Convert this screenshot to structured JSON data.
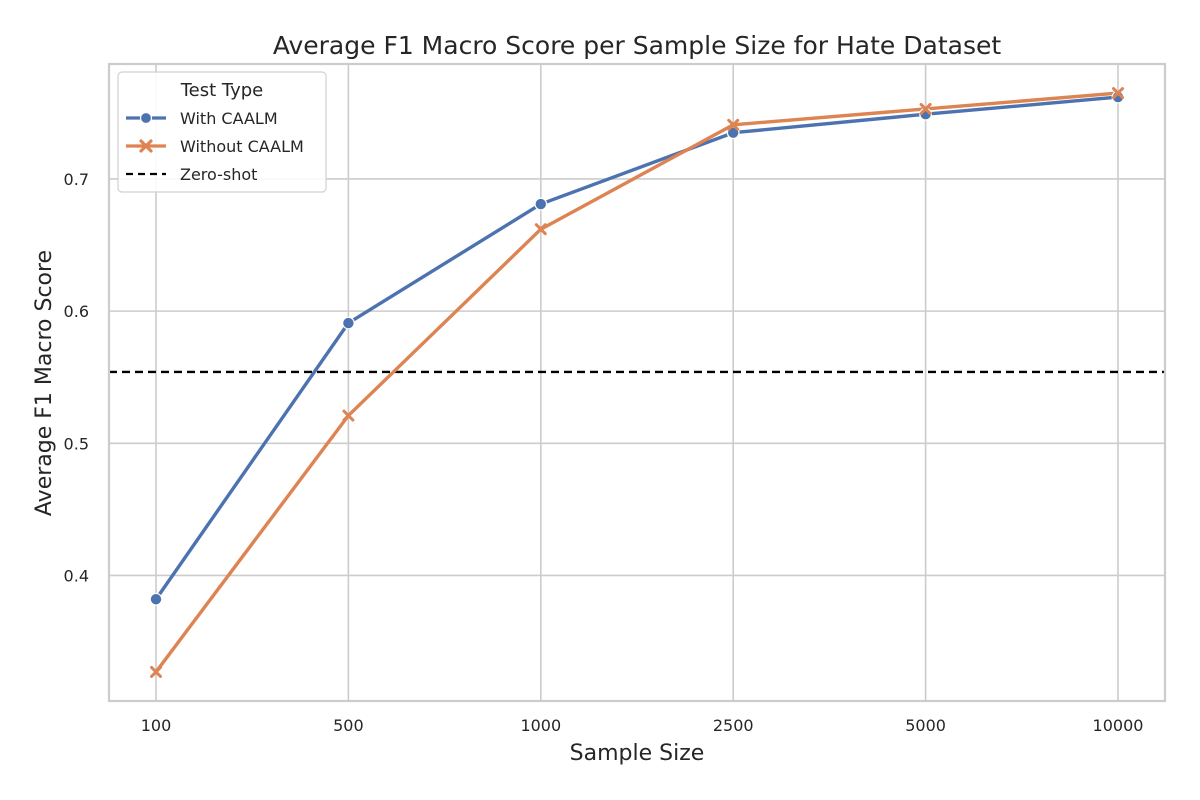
{
  "chart_data": {
    "type": "line",
    "title": "Average F1 Macro Score per Sample Size for Hate Dataset",
    "xlabel": "Sample Size",
    "ylabel": "Average F1 Macro Score",
    "categories": [
      "100",
      "500",
      "1000",
      "2500",
      "5000",
      "10000"
    ],
    "y_ticks": [
      "0.4",
      "0.5",
      "0.6",
      "0.7"
    ],
    "y_tick_values": [
      0.4,
      0.5,
      0.6,
      0.7
    ],
    "ylim": [
      0.305,
      0.787
    ],
    "grid": true,
    "legend": {
      "title": "Test Type",
      "placement": "top-left"
    },
    "series": [
      {
        "name": "With CAALM",
        "color": "#4c72b0",
        "marker": "circle",
        "values": [
          0.382,
          0.591,
          0.681,
          0.735,
          0.749,
          0.762
        ]
      },
      {
        "name": "Without CAALM",
        "color": "#dd8452",
        "marker": "x",
        "values": [
          0.327,
          0.521,
          0.662,
          0.741,
          0.753,
          0.765
        ]
      }
    ],
    "reference_line": {
      "name": "Zero-shot",
      "value": 0.554,
      "color": "#000000",
      "style": "dashed"
    }
  }
}
